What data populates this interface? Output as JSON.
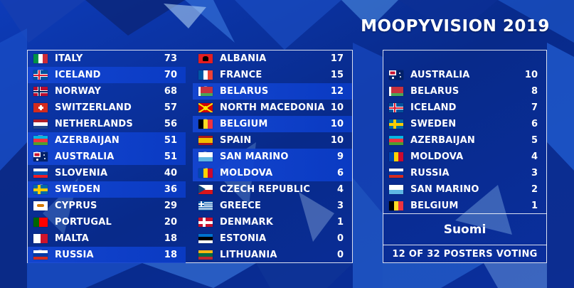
{
  "title": "MOOPYVISION 2019",
  "scoreboard": {
    "column1": [
      {
        "country": "ITALY",
        "total": "73",
        "points": "",
        "flag": "italy"
      },
      {
        "country": "ICELAND",
        "total": "70",
        "points": "7",
        "flag": "iceland"
      },
      {
        "country": "NORWAY",
        "total": "68",
        "points": "",
        "flag": "norway"
      },
      {
        "country": "SWITZERLAND",
        "total": "57",
        "points": "",
        "flag": "switzerland"
      },
      {
        "country": "NETHERLANDS",
        "total": "56",
        "points": "",
        "flag": "netherlands"
      },
      {
        "country": "AZERBAIJAN",
        "total": "51",
        "points": "5",
        "flag": "azerbaijan"
      },
      {
        "country": "AUSTRALIA",
        "total": "51",
        "points": "10",
        "flag": "australia"
      },
      {
        "country": "SLOVENIA",
        "total": "40",
        "points": "",
        "flag": "slovenia"
      },
      {
        "country": "SWEDEN",
        "total": "36",
        "points": "6",
        "flag": "sweden"
      },
      {
        "country": "CYPRUS",
        "total": "29",
        "points": "",
        "flag": "cyprus"
      },
      {
        "country": "PORTUGAL",
        "total": "20",
        "points": "",
        "flag": "portugal"
      },
      {
        "country": "MALTA",
        "total": "18",
        "points": "",
        "flag": "malta"
      },
      {
        "country": "RUSSIA",
        "total": "18",
        "points": "3",
        "flag": "russia"
      }
    ],
    "column2": [
      {
        "country": "ALBANIA",
        "total": "17",
        "points": "",
        "flag": "albania"
      },
      {
        "country": "FRANCE",
        "total": "15",
        "points": "",
        "flag": "france"
      },
      {
        "country": "BELARUS",
        "total": "12",
        "points": "8",
        "flag": "belarus"
      },
      {
        "country": "NORTH MACEDONIA",
        "total": "10",
        "points": "",
        "flag": "macedonia"
      },
      {
        "country": "BELGIUM",
        "total": "10",
        "points": "1",
        "flag": "belgium"
      },
      {
        "country": "SPAIN",
        "total": "10",
        "points": "",
        "flag": "spain"
      },
      {
        "country": "SAN MARINO",
        "total": "9",
        "points": "2",
        "flag": "sanmarino"
      },
      {
        "country": "MOLDOVA",
        "total": "6",
        "points": "4",
        "flag": "moldova"
      },
      {
        "country": "CZECH REPUBLIC",
        "total": "4",
        "points": "",
        "flag": "czech"
      },
      {
        "country": "GREECE",
        "total": "3",
        "points": "",
        "flag": "greece"
      },
      {
        "country": "DENMARK",
        "total": "1",
        "points": "",
        "flag": "denmark"
      },
      {
        "country": "ESTONIA",
        "total": "0",
        "points": "",
        "flag": "estonia"
      },
      {
        "country": "LITHUANIA",
        "total": "0",
        "points": "",
        "flag": "lithuania"
      }
    ]
  },
  "votes": {
    "list": [
      {
        "country": "AUSTRALIA",
        "points": "10",
        "flag": "australia"
      },
      {
        "country": "BELARUS",
        "points": "8",
        "flag": "belarus"
      },
      {
        "country": "ICELAND",
        "points": "7",
        "flag": "iceland"
      },
      {
        "country": "SWEDEN",
        "points": "6",
        "flag": "sweden"
      },
      {
        "country": "AZERBAIJAN",
        "points": "5",
        "flag": "azerbaijan"
      },
      {
        "country": "MOLDOVA",
        "points": "4",
        "flag": "moldova"
      },
      {
        "country": "RUSSIA",
        "points": "3",
        "flag": "russia"
      },
      {
        "country": "SAN MARINO",
        "points": "2",
        "flag": "sanmarino"
      },
      {
        "country": "BELGIUM",
        "points": "1",
        "flag": "belgium"
      }
    ],
    "voter": "Suomi",
    "status": "12 OF 32 POSTERS VOTING"
  },
  "colors": {
    "background": "#0a2a8f",
    "highlight": "#1446d2"
  }
}
